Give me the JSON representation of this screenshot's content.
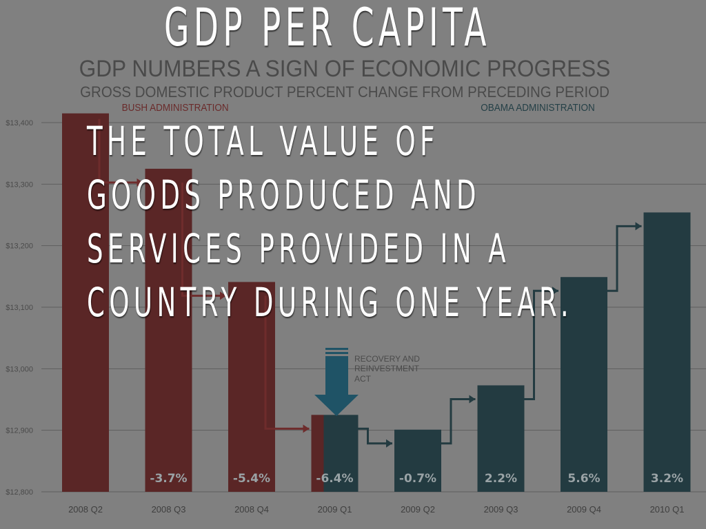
{
  "slide": {
    "title": "GDP PER CAPITA",
    "body_lines": [
      "THE TOTAL VALUE OF",
      "GOODS PRODUCED AND",
      "SERVICES PROVIDED IN A",
      "COUNTRY DURING ONE YEAR."
    ]
  },
  "chart_data": {
    "type": "bar",
    "title": "GDP NUMBERS A SIGN OF ECONOMIC PROGRESS",
    "subtitle": "GROSS DOMESTIC PRODUCT PERCENT CHANGE FROM PRECEDING PERIOD",
    "annotations": [
      "BUSH ADMINISTRATION",
      "OBAMA ADMINISTRATION",
      "RECOVERY AND REINVESTMENT ACT"
    ],
    "categories": [
      "2008 Q2",
      "2008 Q3",
      "2008 Q4",
      "2009 Q1",
      "2009 Q2",
      "2009 Q3",
      "2009 Q4",
      "2010 Q1"
    ],
    "values": [
      13415,
      13325,
      13141,
      12925,
      12901,
      12973,
      13149,
      13254
    ],
    "data_labels": [
      "",
      "-3.7%",
      "-5.4%",
      "-6.4%",
      "-0.7%",
      "2.2%",
      "5.6%",
      "3.2%"
    ],
    "administration": [
      "bush",
      "bush",
      "bush",
      "mixed",
      "obama",
      "obama",
      "obama",
      "obama"
    ],
    "ylim": [
      12800,
      13400
    ],
    "yticks": [
      12800,
      12900,
      13000,
      13100,
      13200,
      13300,
      13400
    ],
    "ytick_labels": [
      "$12,800",
      "$12,900",
      "$13,000",
      "$13,100",
      "$13,200",
      "$13,300",
      "$13,400"
    ],
    "grid": true,
    "colors": {
      "bush": "#5a2626",
      "obama": "#233b41",
      "arrow": "#1f5366",
      "background": "#808080"
    }
  }
}
